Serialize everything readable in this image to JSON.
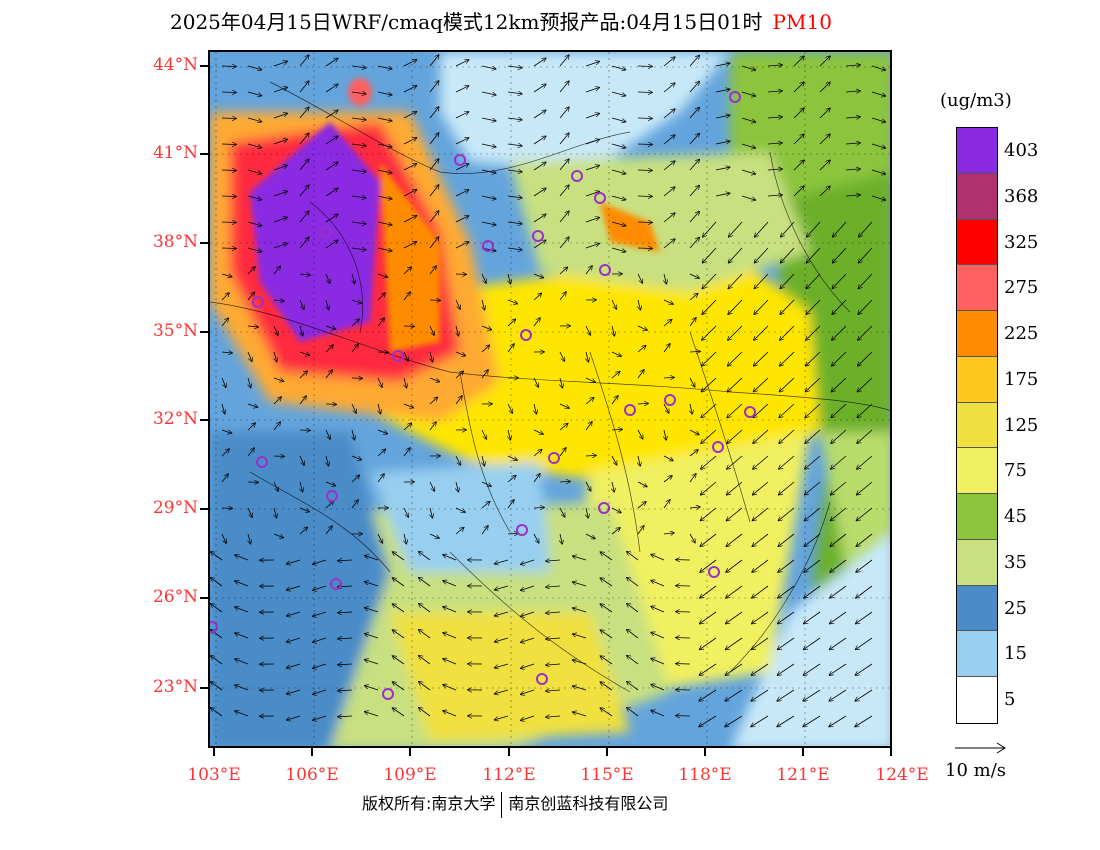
{
  "title": {
    "main": "2025年04月15日WRF/cmaq模式12km预报产品:04月15日01时",
    "pollutant": "PM10"
  },
  "lat_labels": [
    "44°N",
    "41°N",
    "38°N",
    "35°N",
    "32°N",
    "29°N",
    "26°N",
    "23°N"
  ],
  "lon_labels": [
    "103°E",
    "106°E",
    "109°E",
    "112°E",
    "115°E",
    "118°E",
    "121°E",
    "124°E"
  ],
  "colorbar": {
    "unit": "(ug/m3)",
    "labels": [
      "403",
      "368",
      "325",
      "275",
      "225",
      "175",
      "125",
      "75",
      "45",
      "35",
      "25",
      "15",
      "5"
    ],
    "colors": [
      "#8a2be2",
      "#9b30c8",
      "#b03070",
      "#cc1177",
      "#ff0000",
      "#ff2a40",
      "#ff6060",
      "#e85030",
      "#ff8c00",
      "#ffaa30",
      "#ffc820",
      "#ffe600",
      "#f0e040",
      "#f0f060",
      "#6cb02c",
      "#8cc43c",
      "#b8dc6c",
      "#c8e080",
      "#e0ecc0",
      "#4a8cc8",
      "#64a4dc",
      "#98cff0",
      "#c8e8f8",
      "#ffffff"
    ]
  },
  "reference_vector": {
    "label": "10 m/s"
  },
  "copyright": {
    "left": "版权所有:南京大学",
    "right": "南京创蓝科技有限公司"
  }
}
